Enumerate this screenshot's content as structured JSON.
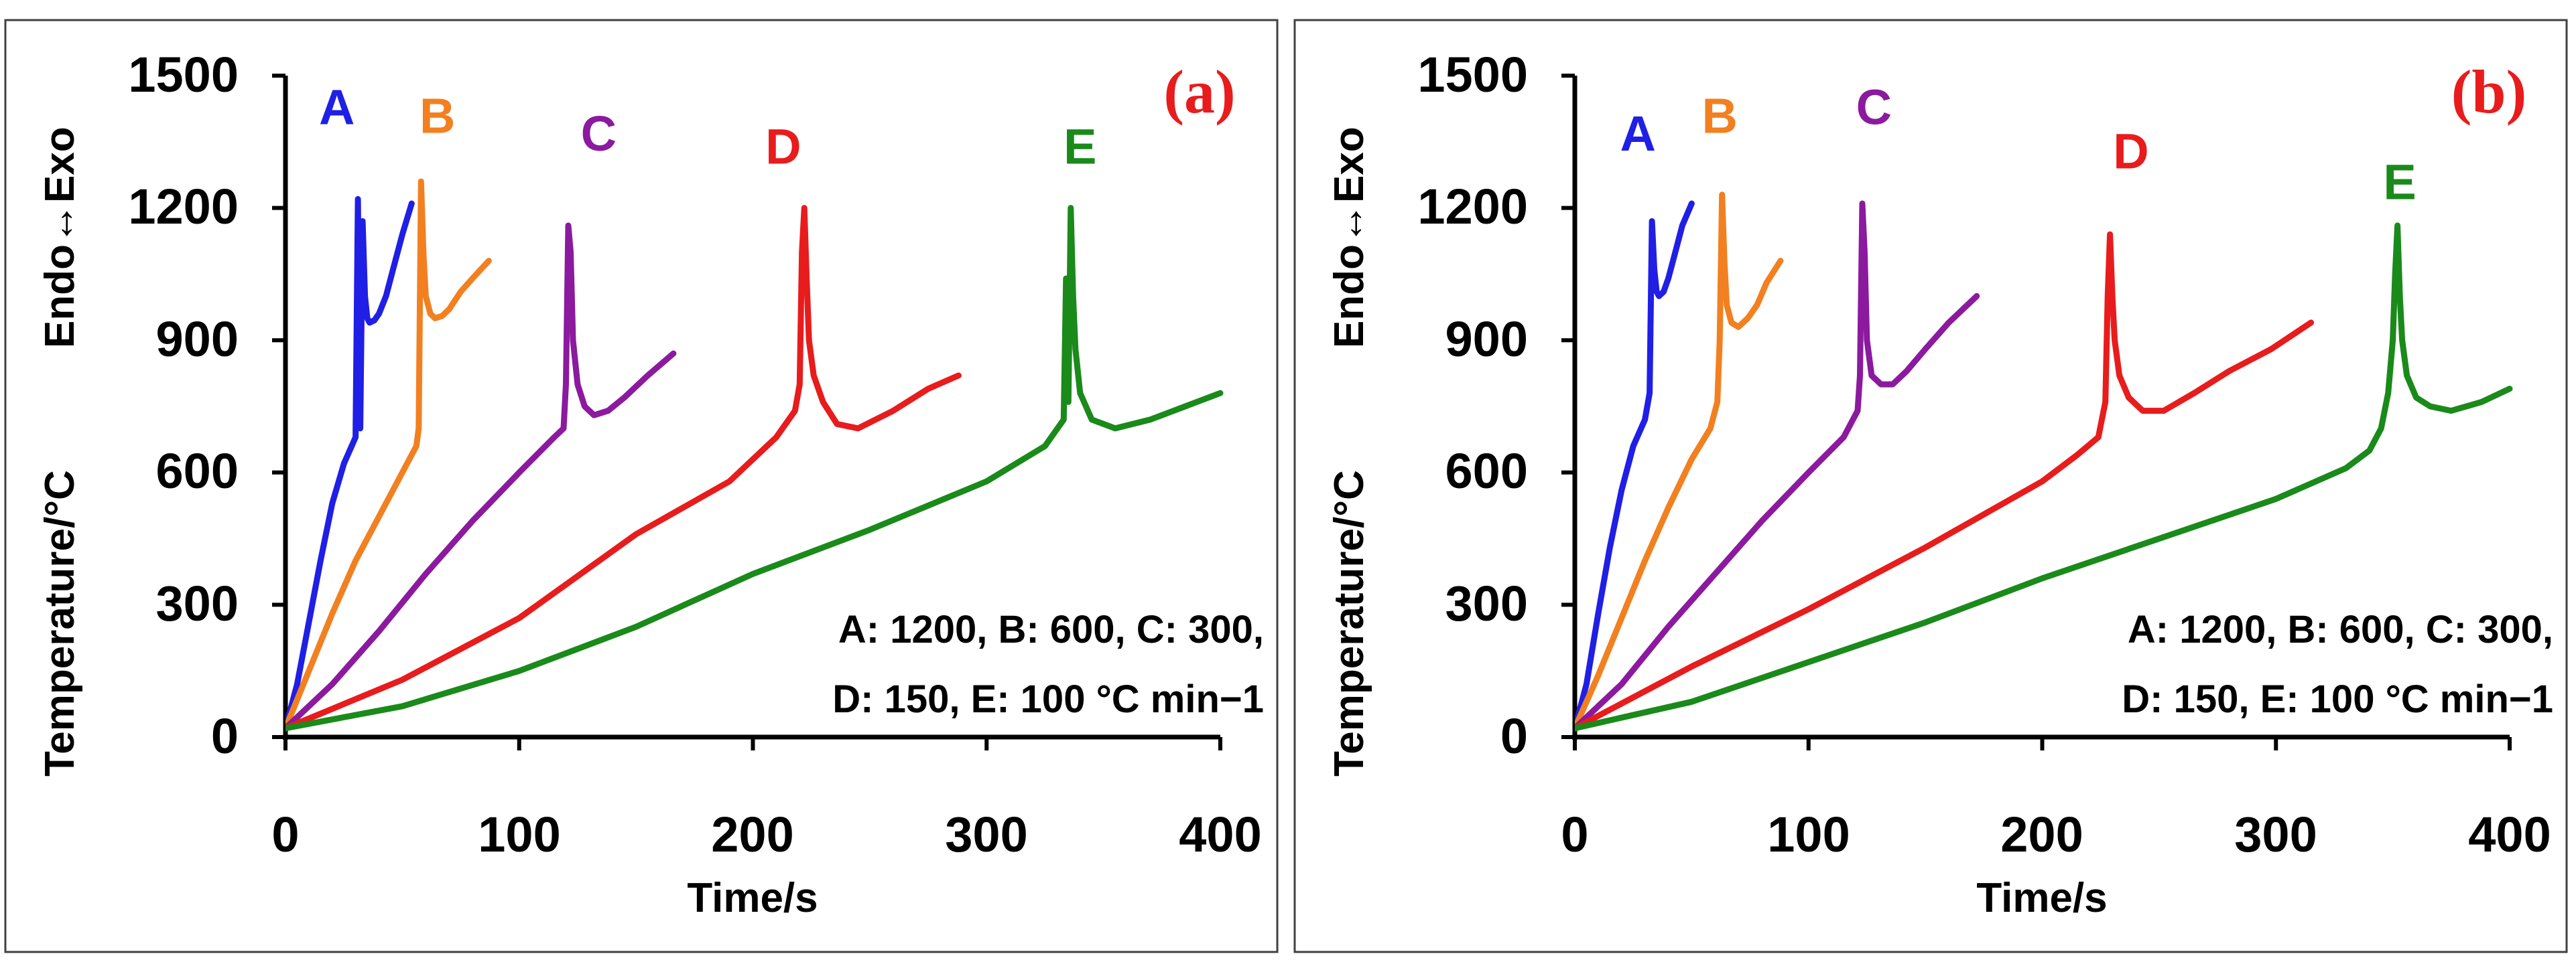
{
  "chart_data": [
    {
      "type": "line",
      "panel_label": "(a)",
      "xlabel": "Time/s",
      "ylabel": "Temperature/°C",
      "ylabel_top": "Endo↔Exo",
      "xlim": [
        0,
        400
      ],
      "ylim": [
        0,
        1500
      ],
      "xticks": [
        "0",
        "100",
        "200",
        "300",
        "400"
      ],
      "yticks": [
        "0",
        "300",
        "600",
        "900",
        "1200",
        "1500"
      ],
      "annotation_line1": "A: 1200, B: 600, C: 300,",
      "annotation_line2": "D: 150, E: 100 °C min−1",
      "series": [
        {
          "name": "A",
          "color": "#1f1fe6",
          "label_at": [
            22,
            1390
          ],
          "x": [
            0,
            5,
            10,
            15,
            20,
            25,
            30,
            31,
            32,
            33,
            34,
            35,
            36,
            38,
            40,
            43,
            46,
            50,
            54
          ],
          "y": [
            20,
            120,
            260,
            400,
            530,
            620,
            680,
            1220,
            700,
            1170,
            1000,
            950,
            940,
            945,
            960,
            1000,
            1060,
            1140,
            1210
          ]
        },
        {
          "name": "B",
          "color": "#f28020",
          "label_at": [
            65,
            1370
          ],
          "x": [
            0,
            10,
            20,
            30,
            40,
            50,
            56,
            57,
            58,
            59,
            60,
            62,
            64,
            67,
            70,
            75,
            80,
            87
          ],
          "y": [
            20,
            150,
            280,
            400,
            500,
            600,
            660,
            700,
            1260,
            1100,
            1000,
            960,
            950,
            955,
            970,
            1010,
            1040,
            1080
          ]
        },
        {
          "name": "C",
          "color": "#8b1a9e",
          "label_at": [
            134,
            1330
          ],
          "x": [
            0,
            20,
            40,
            60,
            80,
            100,
            115,
            119,
            120,
            121,
            122,
            123,
            125,
            128,
            132,
            138,
            145,
            155,
            166
          ],
          "y": [
            20,
            120,
            240,
            370,
            490,
            600,
            680,
            700,
            800,
            1160,
            1100,
            900,
            800,
            750,
            730,
            740,
            770,
            820,
            870
          ]
        },
        {
          "name": "D",
          "color": "#e81c1c",
          "label_at": [
            213,
            1300
          ],
          "x": [
            0,
            50,
            100,
            150,
            190,
            210,
            218,
            220,
            221,
            222,
            223,
            224,
            226,
            230,
            236,
            245,
            260,
            275,
            288
          ],
          "y": [
            20,
            130,
            270,
            460,
            580,
            680,
            740,
            800,
            1100,
            1200,
            1040,
            900,
            820,
            760,
            710,
            700,
            740,
            790,
            820
          ]
        },
        {
          "name": "E",
          "color": "#1a8a1a",
          "label_at": [
            340,
            1300
          ],
          "x": [
            0,
            50,
            100,
            150,
            200,
            250,
            300,
            325,
            333,
            334,
            335,
            336,
            337,
            338,
            340,
            345,
            355,
            370,
            385,
            400
          ],
          "y": [
            20,
            70,
            150,
            250,
            370,
            470,
            580,
            660,
            720,
            1040,
            760,
            1200,
            1000,
            880,
            780,
            720,
            700,
            720,
            750,
            780
          ]
        }
      ]
    },
    {
      "type": "line",
      "panel_label": "(b)",
      "xlabel": "Time/s",
      "ylabel": "Temperature/°C",
      "ylabel_top": "Endo↔Exo",
      "xlim": [
        0,
        400
      ],
      "ylim": [
        0,
        1500
      ],
      "xticks": [
        "0",
        "100",
        "200",
        "300",
        "400"
      ],
      "yticks": [
        "0",
        "300",
        "600",
        "900",
        "1200",
        "1500"
      ],
      "annotation_line1": "A: 1200, B: 600, C: 300,",
      "annotation_line2": "D: 150, E: 100 °C min−1",
      "series": [
        {
          "name": "A",
          "color": "#1f1fe6",
          "label_at": [
            27,
            1330
          ],
          "x": [
            0,
            5,
            10,
            15,
            20,
            25,
            30,
            32,
            33,
            34,
            35,
            36,
            38,
            40,
            43,
            46,
            50
          ],
          "y": [
            20,
            120,
            280,
            430,
            560,
            660,
            720,
            780,
            1170,
            1060,
            1010,
            1000,
            1010,
            1040,
            1100,
            1160,
            1210
          ]
        },
        {
          "name": "B",
          "color": "#f28020",
          "label_at": [
            62,
            1370
          ],
          "x": [
            0,
            10,
            20,
            30,
            40,
            50,
            58,
            61,
            62,
            63,
            64,
            65,
            67,
            70,
            74,
            78,
            82,
            88
          ],
          "y": [
            20,
            140,
            270,
            400,
            520,
            630,
            700,
            760,
            900,
            1230,
            1080,
            980,
            940,
            930,
            950,
            980,
            1030,
            1080
          ]
        },
        {
          "name": "C",
          "color": "#8b1a9e",
          "label_at": [
            128,
            1390
          ],
          "x": [
            0,
            20,
            40,
            60,
            80,
            100,
            115,
            121,
            122,
            123,
            124,
            125,
            127,
            131,
            136,
            142,
            150,
            160,
            172
          ],
          "y": [
            20,
            120,
            250,
            370,
            490,
            600,
            680,
            740,
            820,
            1210,
            1100,
            900,
            820,
            800,
            800,
            830,
            880,
            940,
            1000
          ]
        },
        {
          "name": "D",
          "color": "#e81c1c",
          "label_at": [
            238,
            1290
          ],
          "x": [
            0,
            50,
            100,
            150,
            200,
            215,
            224,
            227,
            228,
            229,
            230,
            231,
            233,
            237,
            243,
            252,
            265,
            280,
            298,
            315
          ],
          "y": [
            20,
            160,
            290,
            430,
            580,
            640,
            680,
            760,
            1000,
            1140,
            1000,
            900,
            820,
            770,
            740,
            740,
            780,
            830,
            880,
            940
          ]
        },
        {
          "name": "E",
          "color": "#1a8a1a",
          "label_at": [
            353,
            1220
          ],
          "x": [
            0,
            50,
            100,
            150,
            200,
            250,
            300,
            330,
            340,
            345,
            348,
            350,
            351,
            352,
            353,
            354,
            356,
            360,
            366,
            375,
            388,
            400
          ],
          "y": [
            20,
            80,
            170,
            260,
            360,
            450,
            540,
            610,
            650,
            700,
            780,
            900,
            1050,
            1160,
            1000,
            900,
            820,
            770,
            750,
            740,
            760,
            790
          ]
        }
      ]
    }
  ]
}
